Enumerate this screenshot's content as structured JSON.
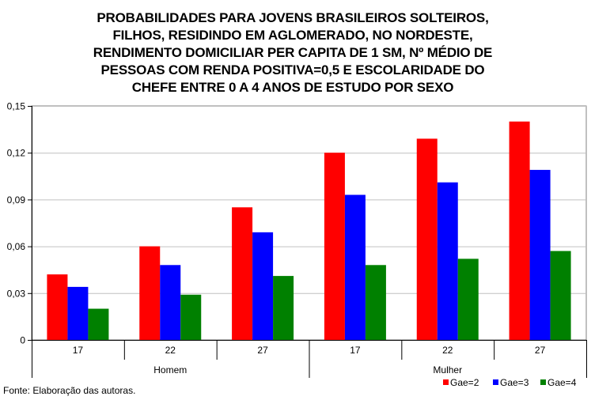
{
  "chart_data": {
    "type": "bar",
    "title_lines": [
      "PROBABILIDADES PARA JOVENS BRASILEIROS SOLTEIROS,",
      "FILHOS, RESIDINDO EM AGLOMERADO, NO NORDESTE,",
      "RENDIMENTO DOMICILIAR PER CAPITA DE 1 SM,  Nº MÉDIO DE",
      "PESSOAS COM RENDA POSITIVA=0,5 E ESCOLARIDADE DO",
      "CHEFE ENTRE 0 A 4 ANOS DE ESTUDO POR SEXO"
    ],
    "groups": [
      "Homem",
      "Mulher"
    ],
    "categories": [
      "17",
      "22",
      "27",
      "17",
      "22",
      "27"
    ],
    "category_group": [
      0,
      0,
      0,
      1,
      1,
      1
    ],
    "series": [
      {
        "name": "Gae=2",
        "color": "#ff0000",
        "values": [
          0.042,
          0.06,
          0.085,
          0.12,
          0.129,
          0.14
        ]
      },
      {
        "name": "Gae=3",
        "color": "#0000ff",
        "values": [
          0.034,
          0.048,
          0.069,
          0.093,
          0.101,
          0.109
        ]
      },
      {
        "name": "Gae=4",
        "color": "#008000",
        "values": [
          0.02,
          0.029,
          0.041,
          0.048,
          0.052,
          0.057
        ]
      }
    ],
    "ylim": [
      0,
      0.15
    ],
    "yticks": [
      "0",
      "0,03",
      "0,06",
      "0,09",
      "0,12",
      "0,15"
    ],
    "ytick_values": [
      0,
      0.03,
      0.06,
      0.09,
      0.12,
      0.15
    ],
    "grid": true,
    "legend_position": "bottom-right"
  },
  "source_note": "Fonte: Elaboração das autoras."
}
